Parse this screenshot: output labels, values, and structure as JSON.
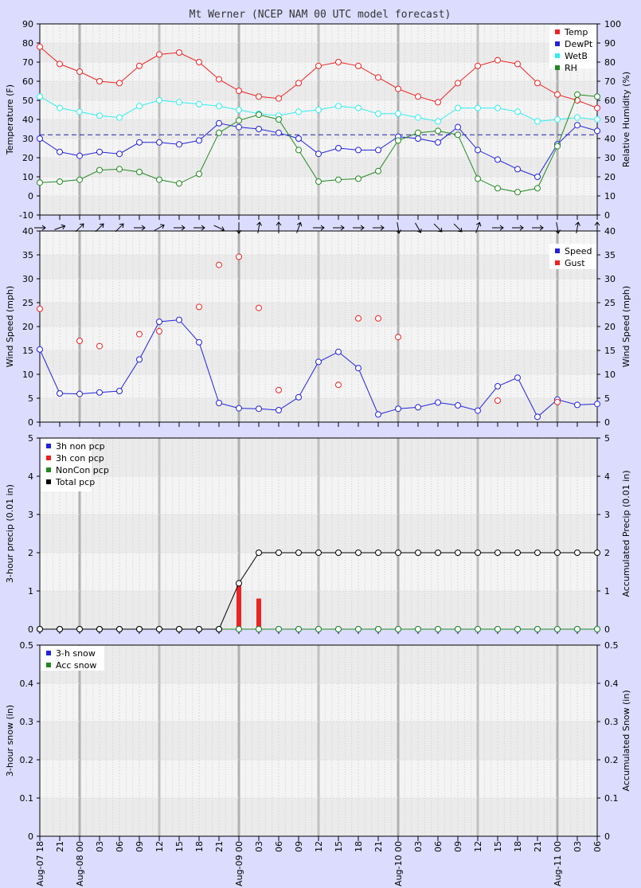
{
  "chart_data": {
    "title": "Mt Werner (NCEP NAM 00 UTC model forecast)",
    "x_labels": [
      "Aug-07 18",
      "21",
      "Aug-08 00",
      "03",
      "06",
      "09",
      "12",
      "15",
      "18",
      "21",
      "Aug-09 00",
      "03",
      "06",
      "09",
      "12",
      "15",
      "18",
      "21",
      "Aug-10 00",
      "03",
      "06",
      "09",
      "12",
      "15",
      "18",
      "21",
      "Aug-11 00",
      "03",
      "06"
    ],
    "panels": [
      {
        "id": "temp",
        "type": "line",
        "ylabel": "Temperature (F)",
        "y2label": "Relative Humidity (%)",
        "ylim": [
          -10,
          90
        ],
        "y2lim": [
          0,
          100
        ],
        "yticks": [
          -10,
          0,
          10,
          20,
          30,
          40,
          50,
          60,
          70,
          80,
          90
        ],
        "y2ticks": [
          0,
          10,
          20,
          30,
          40,
          50,
          60,
          70,
          80,
          90,
          100
        ],
        "ref_line": 32,
        "legend": [
          "Temp",
          "DewPt",
          "WetB",
          "RH"
        ],
        "series": [
          {
            "name": "Temp",
            "color": "#ee2222",
            "axis": "left",
            "values": [
              78,
              69,
              65,
              60,
              59,
              68,
              74,
              75,
              70,
              61,
              55,
              52,
              51,
              59,
              68,
              70,
              68,
              62,
              56,
              52,
              49,
              59,
              68,
              71,
              69,
              59,
              53,
              50,
              46
            ]
          },
          {
            "name": "DewPt",
            "color": "#2222dd",
            "axis": "left",
            "values": [
              30,
              23,
              21,
              23,
              22,
              28,
              28,
              27,
              29,
              38,
              36,
              35,
              33,
              30,
              22,
              25,
              24,
              24,
              31,
              30,
              28,
              36,
              24,
              19,
              14,
              10,
              27,
              37,
              34
            ]
          },
          {
            "name": "WetB",
            "color": "#33eeee",
            "axis": "left",
            "values": [
              52,
              46,
              44,
              42,
              41,
              47,
              50,
              49,
              48,
              47,
              45,
              43,
              42,
              44,
              45,
              47,
              46,
              43,
              43,
              41,
              39,
              46,
              46,
              46,
              44,
              39,
              40,
              41,
              40
            ]
          },
          {
            "name": "RH",
            "color": "#228822",
            "axis": "right",
            "values": [
              17,
              17.5,
              18.5,
              23.5,
              24,
              22.5,
              18.5,
              16.5,
              21.5,
              43,
              49.5,
              52.5,
              50,
              34,
              17.5,
              18.5,
              19,
              23,
              39,
              43,
              44,
              42,
              19,
              14,
              12,
              14,
              36,
              63,
              62
            ]
          }
        ]
      },
      {
        "id": "wind",
        "type": "line",
        "ylabel": "Wind Speed (mph)",
        "y2label": "Wind Speed (mph)",
        "ylim": [
          0,
          40
        ],
        "y2lim": [
          0,
          40
        ],
        "yticks": [
          0,
          5,
          10,
          15,
          20,
          25,
          30,
          35,
          40
        ],
        "y2ticks": [
          0,
          5,
          10,
          15,
          20,
          25,
          30,
          35,
          40
        ],
        "legend": [
          "Speed",
          "Gust"
        ],
        "direction_arrows_deg": [
          90,
          70,
          45,
          45,
          45,
          90,
          60,
          90,
          90,
          115,
          180,
          10,
          0,
          20,
          90,
          90,
          90,
          90,
          170,
          150,
          135,
          135,
          20,
          90,
          90,
          90,
          170,
          10,
          0
        ],
        "series": [
          {
            "name": "Speed",
            "color": "#2222dd",
            "values": [
              15.2,
              6,
              5.9,
              6.2,
              6.5,
              13.1,
              21,
              21.4,
              16.7,
              4,
              2.9,
              2.8,
              2.5,
              5.2,
              12.6,
              14.7,
              11.3,
              1.6,
              2.8,
              3.1,
              4.1,
              3.5,
              2.4,
              7.5,
              9.3,
              1.1,
              4.7,
              3.6,
              3.8
            ]
          },
          {
            "name": "Gust",
            "color": "#ee2222",
            "markers_only": true,
            "values": [
              23.7,
              null,
              17,
              15.9,
              null,
              18.4,
              19,
              null,
              24.1,
              32.9,
              34.6,
              23.9,
              6.7,
              null,
              null,
              7.8,
              21.7,
              21.7,
              17.8,
              null,
              null,
              null,
              null,
              4.5,
              null,
              null,
              4.2,
              null,
              null
            ]
          }
        ]
      },
      {
        "id": "precip",
        "type": "bar+line",
        "ylabel": "3-hour precip (0.01 in)",
        "y2label": "Accumulated Precip (0.01 in)",
        "ylim": [
          0,
          5
        ],
        "y2lim": [
          0,
          5
        ],
        "yticks": [
          0,
          1,
          2,
          3,
          4,
          5
        ],
        "y2ticks": [
          0,
          1,
          2,
          3,
          4,
          5
        ],
        "legend": [
          "3h non pcp",
          "3h con pcp",
          "NonCon pcp",
          "Total pcp"
        ],
        "series": [
          {
            "name": "3h non pcp",
            "color": "#2222dd",
            "values": [
              0,
              0,
              0,
              0,
              0,
              0,
              0,
              0,
              0,
              0,
              0,
              0,
              0,
              0,
              0,
              0,
              0,
              0,
              0,
              0,
              0,
              0,
              0,
              0,
              0,
              0,
              0,
              0,
              0
            ]
          },
          {
            "name": "3h con pcp",
            "color": "#ee2222",
            "bars": true,
            "values": [
              0,
              0,
              0,
              0,
              0,
              0,
              0,
              0,
              0,
              0,
              1.2,
              0.8,
              0,
              0,
              0,
              0,
              0,
              0,
              0,
              0,
              0,
              0,
              0,
              0,
              0,
              0,
              0,
              0,
              0
            ]
          },
          {
            "name": "NonCon pcp",
            "color": "#228822",
            "values": [
              0,
              0,
              0,
              0,
              0,
              0,
              0,
              0,
              0,
              0,
              0,
              0,
              0,
              0,
              0,
              0,
              0,
              0,
              0,
              0,
              0,
              0,
              0,
              0,
              0,
              0,
              0,
              0,
              0
            ]
          },
          {
            "name": "Total pcp",
            "color": "#000000",
            "values": [
              0,
              0,
              0,
              0,
              0,
              0,
              0,
              0,
              0,
              0,
              1.2,
              2,
              2,
              2,
              2,
              2,
              2,
              2,
              2,
              2,
              2,
              2,
              2,
              2,
              2,
              2,
              2,
              2,
              2
            ]
          }
        ]
      },
      {
        "id": "snow",
        "type": "line",
        "ylabel": "3-hour snow (in)",
        "y2label": "Accumulated Snow (in)",
        "ylim": [
          0,
          0.5
        ],
        "y2lim": [
          0,
          0.5
        ],
        "yticks": [
          0,
          0.1,
          0.2,
          0.3,
          0.4,
          0.5
        ],
        "y2ticks": [
          0,
          0.1,
          0.2,
          0.3,
          0.4,
          0.5
        ],
        "legend": [
          "3-h snow",
          "Acc snow"
        ],
        "series": [
          {
            "name": "3-h snow",
            "color": "#2222dd",
            "values": []
          },
          {
            "name": "Acc snow",
            "color": "#228822",
            "values": []
          }
        ]
      }
    ]
  }
}
